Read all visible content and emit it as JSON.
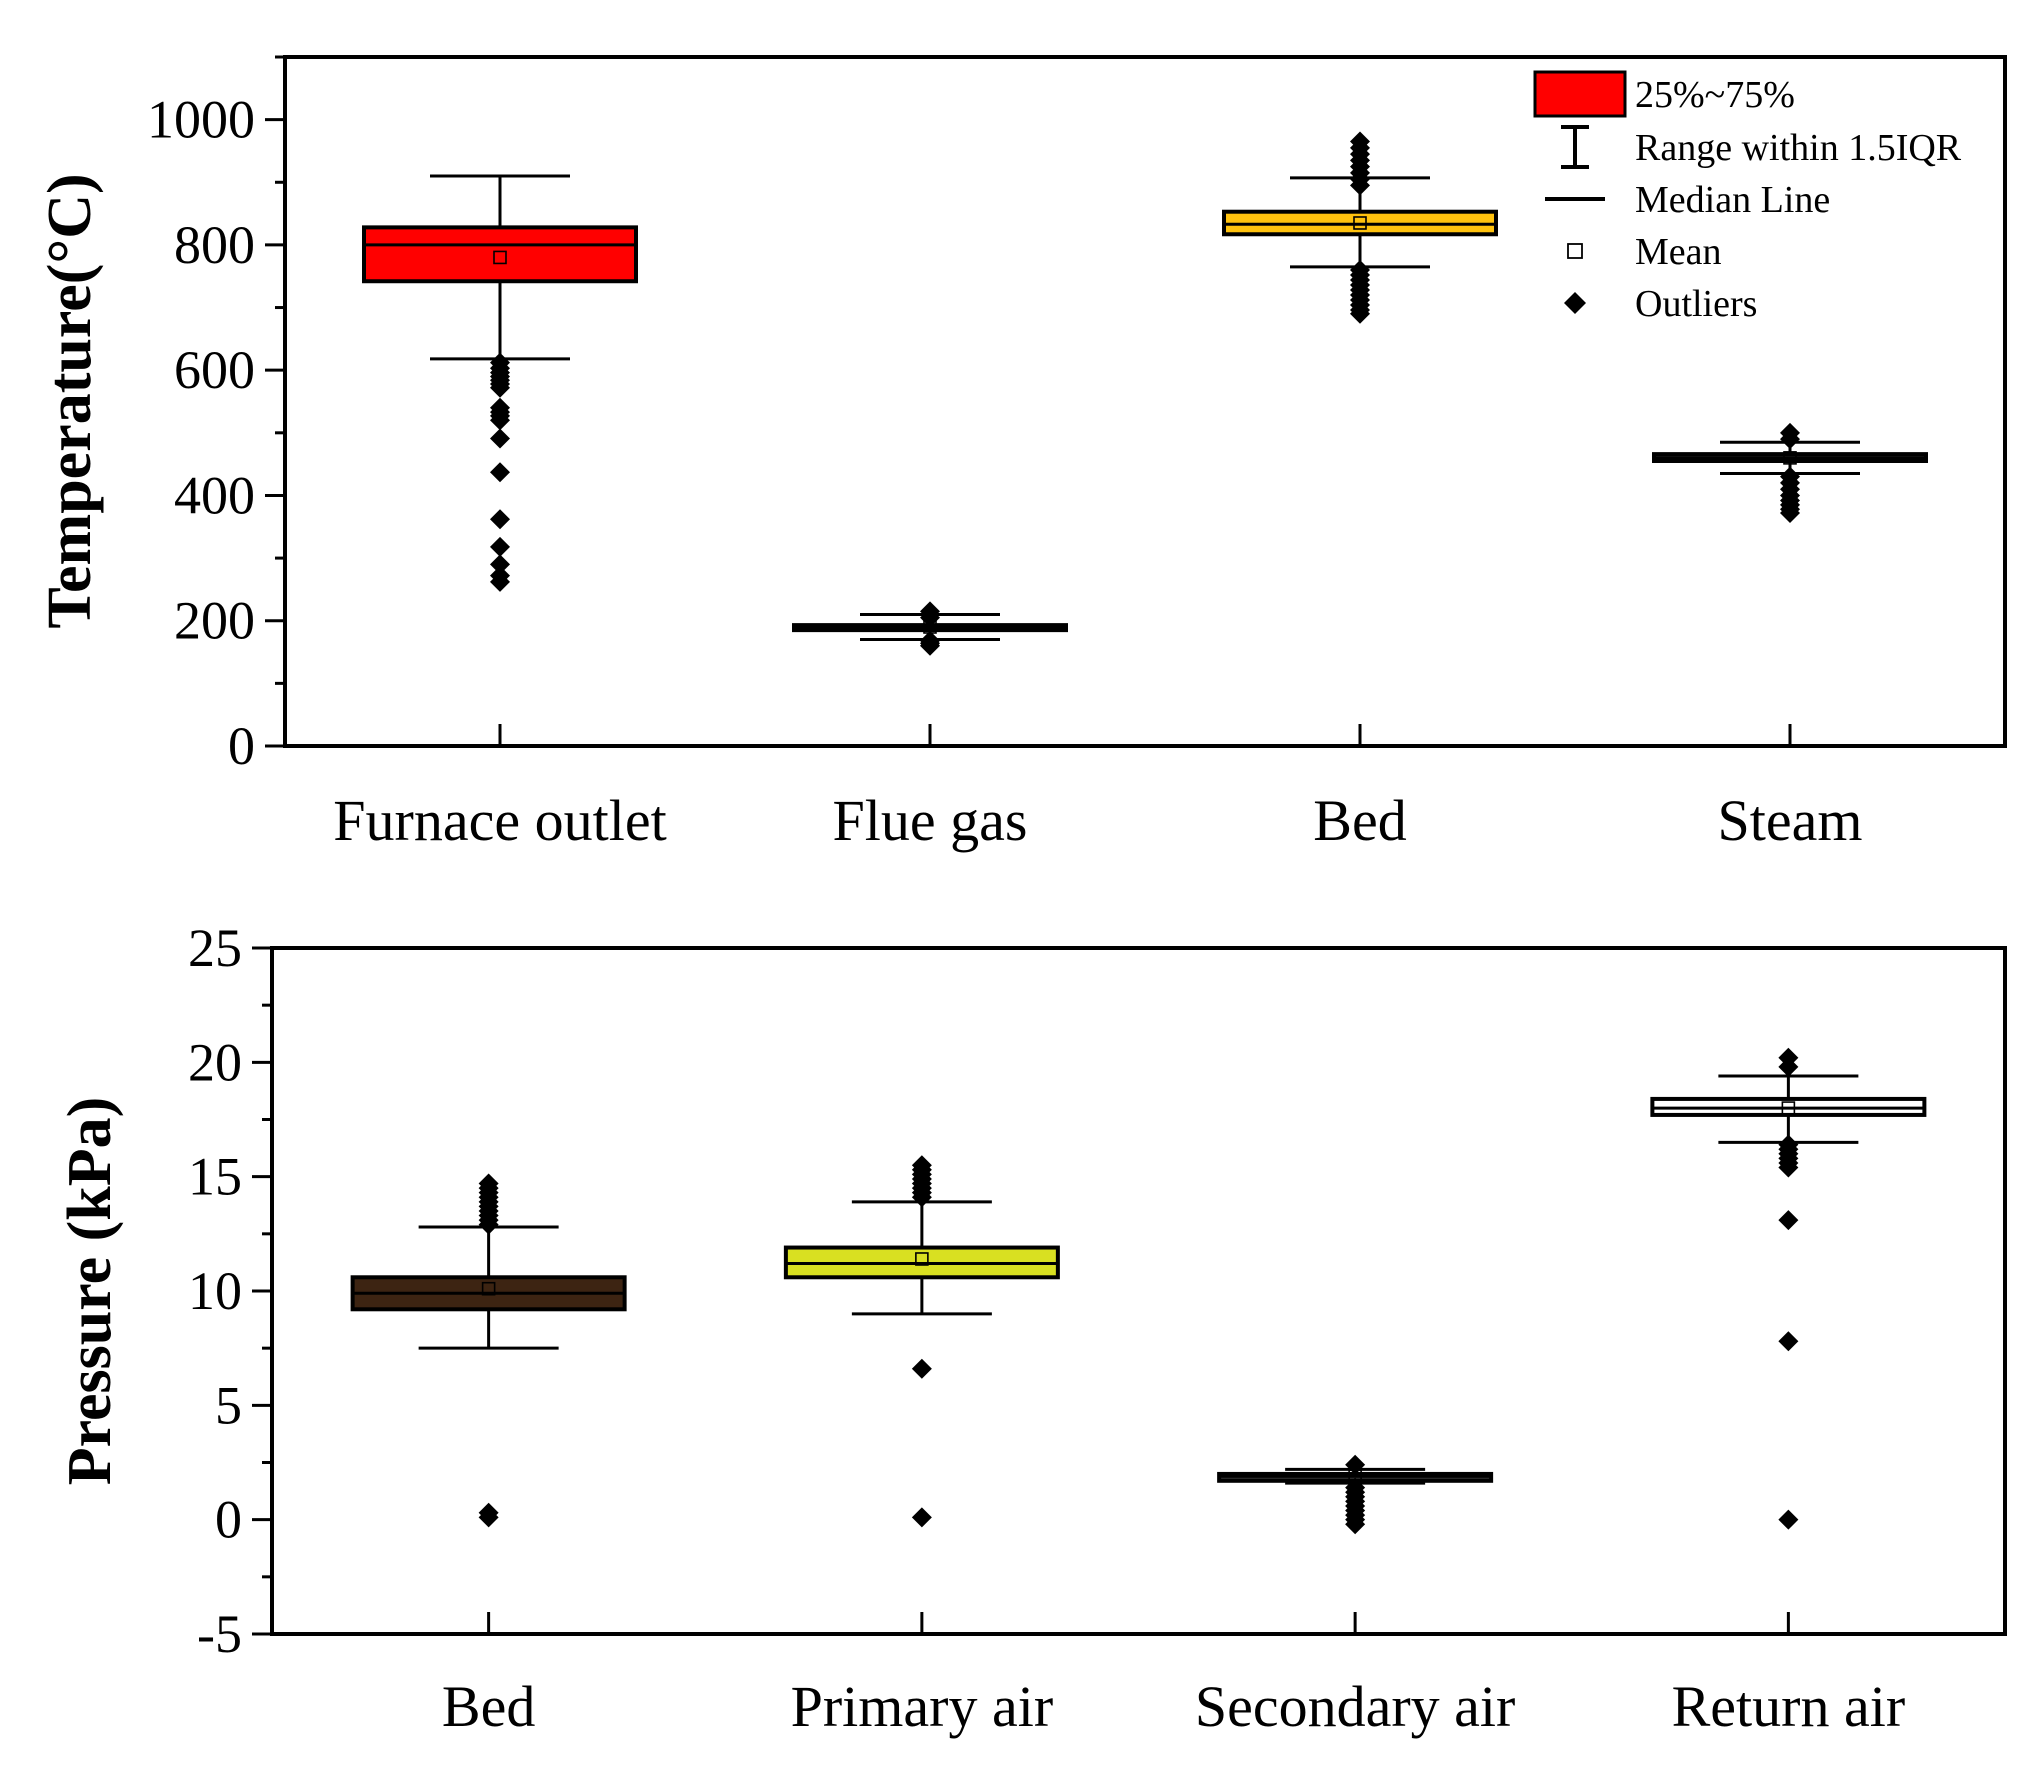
{
  "chart_data": [
    {
      "type": "box",
      "ylabel": "Temperature(°C)",
      "ylim": [
        0,
        1100
      ],
      "yticks": [
        0,
        200,
        400,
        600,
        800,
        1000
      ],
      "yminor_step": 100,
      "categories": [
        "Furnace outlet",
        "Flue gas",
        "Bed",
        "Steam"
      ],
      "boxes": [
        {
          "name": "Furnace outlet",
          "q1": 742,
          "median": 800,
          "q3": 828,
          "mean": 780,
          "whisker_low": 618,
          "whisker_high": 910,
          "color": "#ff0000",
          "outliers": [
            612,
            603,
            596,
            590,
            584,
            578,
            572,
            540,
            533,
            527,
            520,
            491,
            437,
            362,
            318,
            290,
            272,
            262
          ]
        },
        {
          "name": "Flue gas",
          "q1": 185,
          "median": 190,
          "q3": 193,
          "mean": 190,
          "whisker_low": 170,
          "whisker_high": 210,
          "color": "#333333",
          "outliers": [
            215,
            210,
            205,
            168,
            164,
            160
          ]
        },
        {
          "name": "Bed",
          "q1": 817,
          "median": 833,
          "q3": 853,
          "mean": 835,
          "whisker_low": 765,
          "whisker_high": 907,
          "color": "#ffc20e",
          "outliers": [
            965,
            955,
            945,
            935,
            925,
            915,
            905,
            895,
            760,
            752,
            744,
            736,
            728,
            720,
            712,
            704,
            696,
            690
          ]
        },
        {
          "name": "Steam",
          "q1": 455,
          "median": 460,
          "q3": 466,
          "mean": 460,
          "whisker_low": 435,
          "whisker_high": 485,
          "color": "#333333",
          "outliers": [
            500,
            490,
            430,
            420,
            410,
            400,
            392,
            385,
            378,
            372
          ]
        }
      ]
    },
    {
      "type": "box",
      "ylabel": "Pressure (kPa)",
      "ylim": [
        -5,
        25
      ],
      "yticks": [
        -5,
        0,
        5,
        10,
        15,
        20,
        25
      ],
      "yminor_step": 2.5,
      "categories": [
        "Bed",
        "Primary air",
        "Secondary air",
        "Return air"
      ],
      "boxes": [
        {
          "name": "Bed",
          "q1": 9.2,
          "median": 9.9,
          "q3": 10.6,
          "mean": 10.1,
          "whisker_low": 7.5,
          "whisker_high": 12.8,
          "color": "#3d2412",
          "outliers": [
            14.7,
            14.5,
            14.3,
            14.1,
            13.9,
            13.7,
            13.5,
            13.3,
            13.1,
            12.9,
            0.3,
            0.1
          ]
        },
        {
          "name": "Primary air",
          "q1": 10.6,
          "median": 11.2,
          "q3": 11.9,
          "mean": 11.4,
          "whisker_low": 9.0,
          "whisker_high": 13.9,
          "color": "#d9e021",
          "outliers": [
            15.5,
            15.3,
            15.1,
            14.9,
            14.7,
            14.5,
            14.3,
            14.1,
            6.6,
            0.1
          ]
        },
        {
          "name": "Secondary air",
          "q1": 1.7,
          "median": 1.9,
          "q3": 2.0,
          "mean": 1.9,
          "whisker_low": 1.6,
          "whisker_high": 2.2,
          "color": "#333333",
          "outliers": [
            2.4,
            1.4,
            1.2,
            1.0,
            0.8,
            0.6,
            0.4,
            0.2,
            0.0,
            -0.2
          ]
        },
        {
          "name": "Return air",
          "q1": 17.7,
          "median": 18.0,
          "q3": 18.4,
          "mean": 18.0,
          "whisker_low": 16.5,
          "whisker_high": 19.4,
          "color": "#ffffff",
          "outliers": [
            20.2,
            19.8,
            16.4,
            16.2,
            16.0,
            15.8,
            15.6,
            15.4,
            13.1,
            7.8,
            0.0
          ]
        }
      ],
      "legend": {
        "placement": "top-right of upper chart",
        "items": [
          {
            "label": "25%~75%",
            "symbol": "box",
            "color": "#ff0000"
          },
          {
            "label": "Range within 1.5IQR",
            "symbol": "whisker"
          },
          {
            "label": "Median Line",
            "symbol": "line"
          },
          {
            "label": "Mean",
            "symbol": "square"
          },
          {
            "label": "Outliers",
            "symbol": "diamond"
          }
        ]
      }
    }
  ]
}
